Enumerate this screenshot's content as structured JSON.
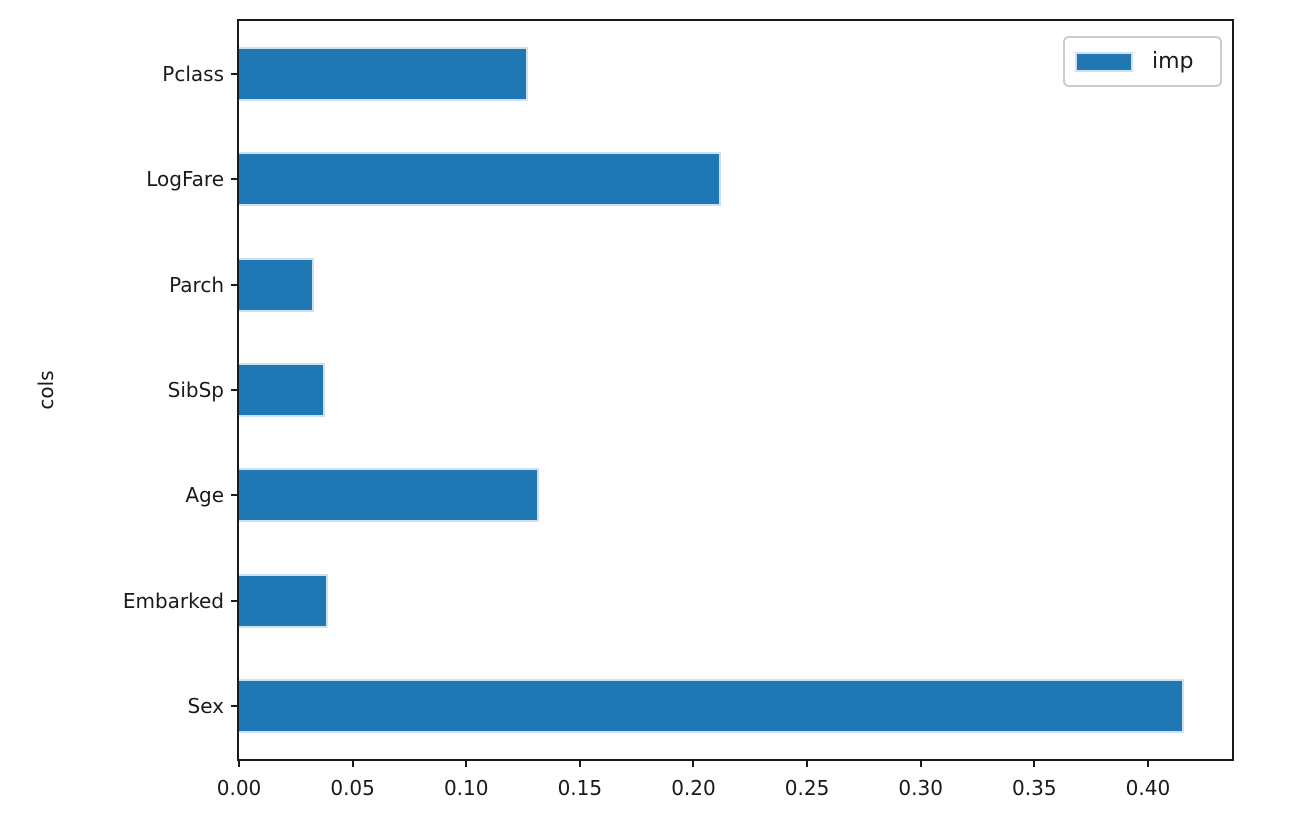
{
  "chart_data": {
    "type": "bar",
    "orientation": "horizontal",
    "title": "",
    "xlabel": "",
    "ylabel": "cols",
    "categories": [
      "Pclass",
      "LogFare",
      "Parch",
      "SibSp",
      "Age",
      "Embarked",
      "Sex"
    ],
    "series": [
      {
        "name": "imp",
        "values": [
          0.127,
          0.212,
          0.033,
          0.038,
          0.132,
          0.039,
          0.416
        ]
      }
    ],
    "xlim": [
      0,
      0.437
    ],
    "x_ticks": [
      "0.00",
      "0.05",
      "0.10",
      "0.15",
      "0.20",
      "0.25",
      "0.30",
      "0.35",
      "0.40"
    ],
    "x_tick_values": [
      0,
      0.05,
      0.1,
      0.15,
      0.2,
      0.25,
      0.3,
      0.35,
      0.4
    ],
    "legend": {
      "label": "imp",
      "position": "upper-right"
    },
    "grid": false,
    "colors": {
      "bar": "#1f77b4",
      "bar_edge": "#cfe0ef",
      "spine": "#1a1a1a",
      "text": "#1a1a1a",
      "legend_border": "#cccccc",
      "background": "#ffffff"
    }
  }
}
